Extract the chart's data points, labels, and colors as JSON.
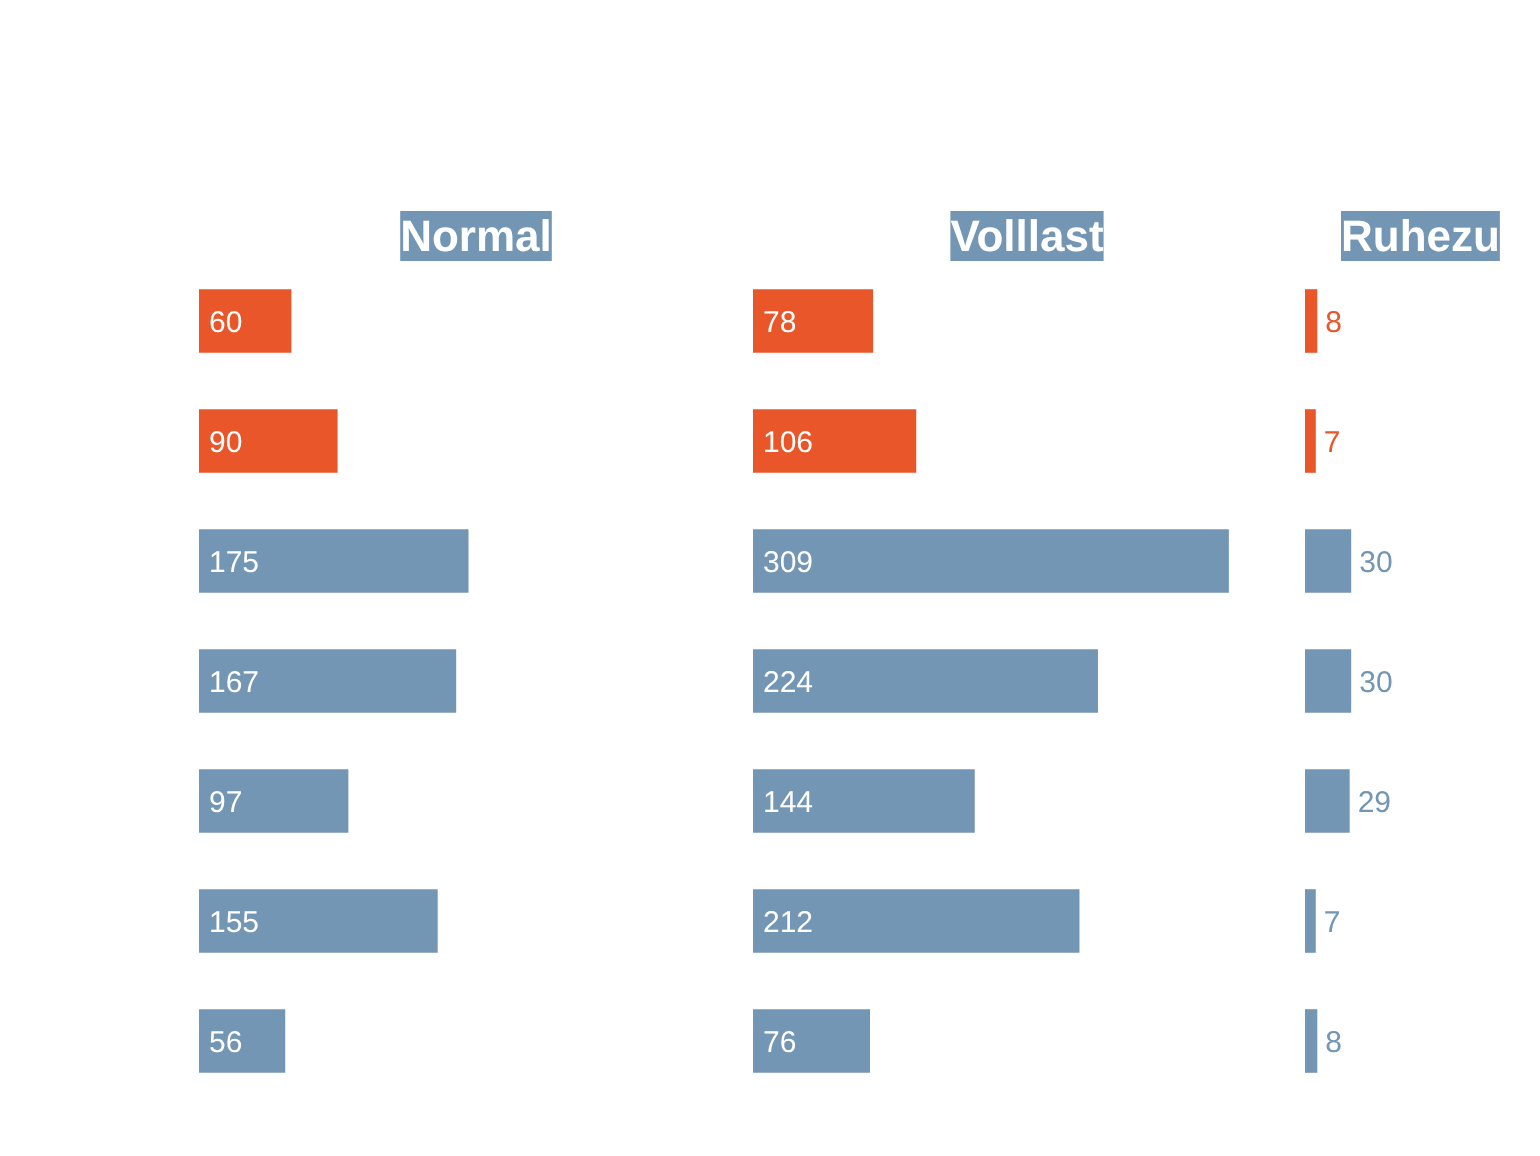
{
  "chart_data": [
    {
      "type": "bar",
      "orientation": "horizontal",
      "title": "Normal",
      "categories": [
        null,
        null,
        null,
        null,
        null,
        null,
        null
      ],
      "values": [
        60,
        90,
        175,
        167,
        97,
        155,
        56
      ],
      "colors": [
        "#e8562a",
        "#e8562a",
        "#7396b4",
        "#7396b4",
        "#7396b4",
        "#7396b4",
        "#7396b4"
      ],
      "data_labels": true,
      "tick_labels": false,
      "grid": false,
      "legend": false
    },
    {
      "type": "bar",
      "orientation": "horizontal",
      "title": "Volllast",
      "categories": [
        null,
        null,
        null,
        null,
        null,
        null,
        null
      ],
      "values": [
        78,
        106,
        309,
        224,
        144,
        212,
        76
      ],
      "colors": [
        "#e8562a",
        "#e8562a",
        "#7396b4",
        "#7396b4",
        "#7396b4",
        "#7396b4",
        "#7396b4"
      ],
      "data_labels": true,
      "tick_labels": false,
      "grid": false,
      "legend": false
    },
    {
      "type": "bar",
      "orientation": "horizontal",
      "title": "Ruhezu",
      "categories": [
        null,
        null,
        null,
        null,
        null,
        null,
        null
      ],
      "values": [
        8,
        7,
        30,
        30,
        29,
        7,
        8
      ],
      "colors": [
        "#e8562a",
        "#e8562a",
        "#7396b4",
        "#7396b4",
        "#7396b4",
        "#7396b4",
        "#7396b4"
      ],
      "data_labels": true,
      "tick_labels": false,
      "grid": false,
      "legend": false
    }
  ]
}
